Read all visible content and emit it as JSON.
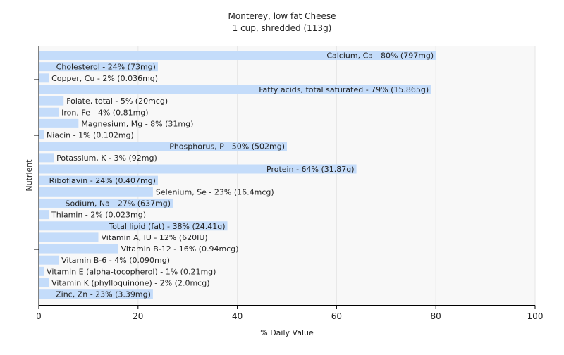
{
  "chart_data": {
    "type": "bar",
    "orientation": "horizontal",
    "title": "Monterey, low fat Cheese",
    "subtitle": "1 cup, shredded (113g)",
    "xlabel": "% Daily Value",
    "ylabel": "Nutrient",
    "xlim": [
      0,
      100
    ],
    "xticks": [
      0,
      20,
      40,
      60,
      80,
      100
    ],
    "grid": true,
    "legend": "none",
    "bar_color": "#c4dcfa",
    "grid_color": "#e6e6e6",
    "plot_background": "#f8f8f8",
    "categories": [
      "Calcium, Ca",
      "Cholesterol",
      "Copper, Cu",
      "Fatty acids, total saturated",
      "Folate, total",
      "Iron, Fe",
      "Magnesium, Mg",
      "Niacin",
      "Phosphorus, P",
      "Potassium, K",
      "Protein",
      "Riboflavin",
      "Selenium, Se",
      "Sodium, Na",
      "Thiamin",
      "Total lipid (fat)",
      "Vitamin A, IU",
      "Vitamin B-12",
      "Vitamin B-6",
      "Vitamin E (alpha-tocopherol)",
      "Vitamin K (phylloquinone)",
      "Zinc, Zn"
    ],
    "values": [
      80,
      24,
      2,
      79,
      5,
      4,
      8,
      1,
      50,
      3,
      64,
      24,
      23,
      27,
      2,
      38,
      12,
      16,
      4,
      1,
      2,
      23
    ],
    "labels": [
      "Calcium, Ca - 80% (797mg)",
      "Cholesterol - 24% (73mg)",
      "Copper, Cu - 2% (0.036mg)",
      "Fatty acids, total saturated - 79% (15.865g)",
      "Folate, total - 5% (20mcg)",
      "Iron, Fe - 4% (0.81mg)",
      "Magnesium, Mg - 8% (31mg)",
      "Niacin - 1% (0.102mg)",
      "Phosphorus, P - 50% (502mg)",
      "Potassium, K - 3% (92mg)",
      "Protein - 64% (31.87g)",
      "Riboflavin - 24% (0.407mg)",
      "Selenium, Se - 23% (16.4mcg)",
      "Sodium, Na - 27% (637mg)",
      "Thiamin - 2% (0.023mg)",
      "Total lipid (fat) - 38% (24.41g)",
      "Vitamin A, IU - 12% (620IU)",
      "Vitamin B-12 - 16% (0.94mcg)",
      "Vitamin B-6 - 4% (0.090mg)",
      "Vitamin E (alpha-tocopherol) - 1% (0.21mg)",
      "Vitamin K (phylloquinone) - 2% (2.0mcg)",
      "Zinc, Zn - 23% (3.39mg)"
    ]
  }
}
